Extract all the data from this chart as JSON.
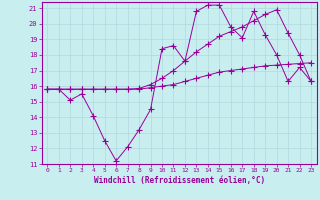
{
  "xlabel": "Windchill (Refroidissement éolien,°C)",
  "xlim": [
    -0.5,
    23.5
  ],
  "ylim": [
    11,
    21.4
  ],
  "xticks": [
    0,
    1,
    2,
    3,
    4,
    5,
    6,
    7,
    8,
    9,
    10,
    11,
    12,
    13,
    14,
    15,
    16,
    17,
    18,
    19,
    20,
    21,
    22,
    23
  ],
  "yticks": [
    11,
    12,
    13,
    14,
    15,
    16,
    17,
    18,
    19,
    20,
    21
  ],
  "bg_color": "#c8eef0",
  "grid_color": "#b0d8dc",
  "line_color": "#990099",
  "line1_x": [
    0,
    1,
    2,
    3,
    4,
    5,
    6,
    7,
    8,
    9,
    10,
    11,
    12,
    13,
    14,
    15,
    16,
    17,
    18,
    19,
    20,
    21,
    22,
    23
  ],
  "line1_y": [
    15.8,
    15.8,
    15.1,
    15.5,
    14.1,
    12.5,
    11.2,
    12.1,
    13.2,
    14.5,
    18.4,
    18.6,
    17.6,
    20.8,
    21.2,
    21.2,
    19.8,
    19.1,
    20.8,
    19.3,
    18.0,
    16.3,
    17.2,
    16.3
  ],
  "line2_x": [
    0,
    1,
    2,
    3,
    4,
    5,
    6,
    7,
    8,
    9,
    10,
    11,
    12,
    13,
    14,
    15,
    16,
    17,
    18,
    19,
    20,
    21,
    22,
    23
  ],
  "line2_y": [
    15.8,
    15.8,
    15.8,
    15.8,
    15.8,
    15.8,
    15.8,
    15.8,
    15.8,
    15.9,
    16.0,
    16.1,
    16.3,
    16.5,
    16.7,
    16.9,
    17.0,
    17.1,
    17.2,
    17.3,
    17.35,
    17.4,
    17.45,
    17.5
  ],
  "line3_x": [
    0,
    1,
    2,
    3,
    4,
    5,
    6,
    7,
    8,
    9,
    10,
    11,
    12,
    13,
    14,
    15,
    16,
    17,
    18,
    19,
    20,
    21,
    22,
    23
  ],
  "line3_y": [
    15.8,
    15.8,
    15.8,
    15.8,
    15.8,
    15.8,
    15.8,
    15.8,
    15.85,
    16.1,
    16.5,
    17.0,
    17.6,
    18.2,
    18.7,
    19.2,
    19.5,
    19.8,
    20.2,
    20.6,
    20.9,
    19.4,
    18.0,
    16.3
  ]
}
